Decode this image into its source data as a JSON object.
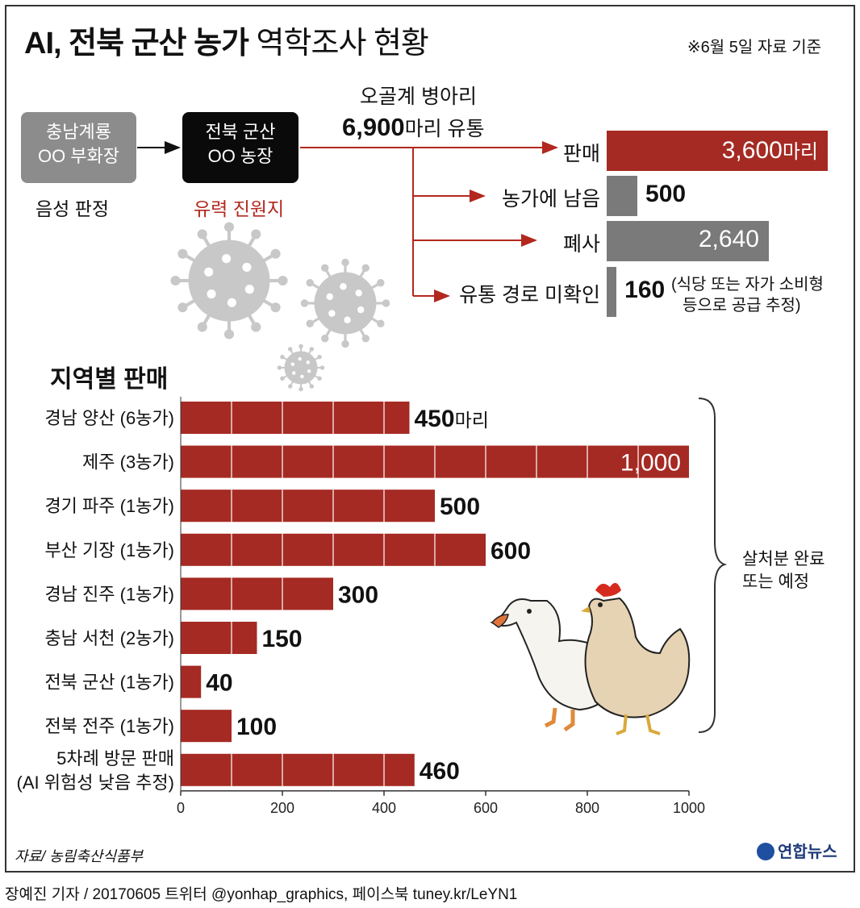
{
  "title": {
    "bold": "AI, 전북 군산 농가",
    "light": " 역학조사 현황"
  },
  "note": "※6월 5일 자료 기준",
  "flow": {
    "source_box": [
      "충남계룡",
      "OO 부화장"
    ],
    "source_caption": "음성 판정",
    "farm_box": [
      "전북 군산",
      "OO 농장"
    ],
    "farm_caption": "유력 진원지",
    "head_line1": "오골계 병아리",
    "head_num": "6,900",
    "head_unit": "마리 유통"
  },
  "distribution": [
    {
      "label": "판매",
      "value": 3600,
      "text": "3,600",
      "unit": "마리"
    },
    {
      "label": "농가에 남음",
      "value": 500,
      "text": "500",
      "unit": ""
    },
    {
      "label": "폐사",
      "value": 2640,
      "text": "2,640",
      "unit": ""
    },
    {
      "label": "유통 경로 미확인",
      "value": 160,
      "text": "160",
      "unit": ""
    }
  ],
  "distribution_note": [
    "(식당 또는 자가 소비형",
    "등으로 공급 추정)"
  ],
  "section_title": "지역별 판매",
  "chart_data": {
    "type": "bar",
    "orientation": "horizontal",
    "categories": [
      "경남 양산 (6농가)",
      "제주 (3농가)",
      "경기 파주 (1농가)",
      "부산 기장 (1농가)",
      "경남 진주 (1농가)",
      "충남 서천 (2농가)",
      "전북 군산 (1농가)",
      "전북 전주 (1농가)",
      "5차례 방문 판매|(AI 위험성 낮음 추정)"
    ],
    "values": [
      450,
      1000,
      500,
      600,
      300,
      150,
      40,
      100,
      460
    ],
    "value_labels": [
      "450",
      "1,000",
      "500",
      "600",
      "300",
      "150",
      "40",
      "100",
      "460"
    ],
    "first_unit": "마리",
    "xlim": [
      0,
      1000
    ],
    "xticks": [
      "0",
      "200",
      "400",
      "600",
      "800",
      "1000"
    ],
    "bar_color": "#a52a23"
  },
  "brace_note": [
    "살처분 완료",
    "또는 예정"
  ],
  "source": "자료/ 농림축산식품부",
  "logo": "연합뉴스",
  "credit": "장예진 기자 / 20170605 트위터 @yonhap_graphics, 페이스북 tuney.kr/LeYN1",
  "colors": {
    "red": "#a52a23",
    "gray": "#7a7a7a",
    "virus": "#c8c8c8"
  }
}
